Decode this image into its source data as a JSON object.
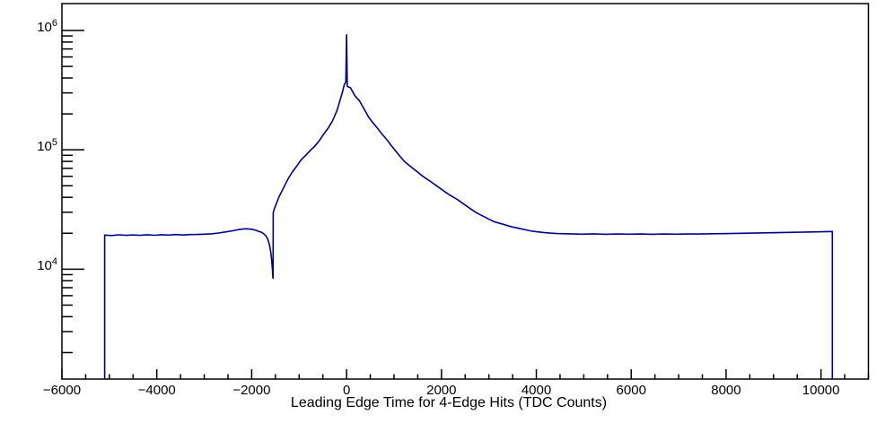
{
  "colors": {
    "background": "#ffffff",
    "frame": "#000000",
    "histogram_line": "#00008b"
  },
  "chart_data": {
    "type": "line",
    "title": "",
    "xlabel": "Leading Edge Time for 4-Edge Hits (TDC Counts)",
    "ylabel": "",
    "grid": false,
    "legend": "none",
    "x_axis": {
      "min": -6000,
      "max": 11000,
      "major_step": 2000,
      "minor_step": 500,
      "ticks": [
        {
          "value": -6000,
          "label": "−6000"
        },
        {
          "value": -4000,
          "label": "−4000"
        },
        {
          "value": -2000,
          "label": "−2000"
        },
        {
          "value": 0,
          "label": "0"
        },
        {
          "value": 2000,
          "label": "2000"
        },
        {
          "value": 4000,
          "label": "4000"
        },
        {
          "value": 6000,
          "label": "6000"
        },
        {
          "value": 8000,
          "label": "8000"
        },
        {
          "value": 10000,
          "label": "10000"
        }
      ]
    },
    "y_axis": {
      "scale": "log",
      "min": 1200,
      "max": 1680000,
      "decades": [
        {
          "value": 10000,
          "mantissa": "10",
          "exponent": "4"
        },
        {
          "value": 100000,
          "mantissa": "10",
          "exponent": "5"
        },
        {
          "value": 1000000,
          "mantissa": "10",
          "exponent": "6"
        }
      ]
    },
    "series": [
      {
        "color": "#00008b",
        "points": [
          [
            -5100,
            1200
          ],
          [
            -5100,
            19300
          ],
          [
            -4950,
            19150
          ],
          [
            -4800,
            19400
          ],
          [
            -4650,
            19200
          ],
          [
            -4500,
            19350
          ],
          [
            -4350,
            19200
          ],
          [
            -4200,
            19450
          ],
          [
            -4050,
            19250
          ],
          [
            -3900,
            19450
          ],
          [
            -3750,
            19300
          ],
          [
            -3600,
            19500
          ],
          [
            -3450,
            19350
          ],
          [
            -3300,
            19500
          ],
          [
            -3150,
            19550
          ],
          [
            -3000,
            19650
          ],
          [
            -2850,
            19800
          ],
          [
            -2700,
            20100
          ],
          [
            -2550,
            20500
          ],
          [
            -2400,
            21000
          ],
          [
            -2300,
            21400
          ],
          [
            -2200,
            21700
          ],
          [
            -2100,
            21800
          ],
          [
            -2000,
            21600
          ],
          [
            -1930,
            21300
          ],
          [
            -1860,
            20800
          ],
          [
            -1800,
            20400
          ],
          [
            -1760,
            20000
          ],
          [
            -1700,
            19000
          ],
          [
            -1660,
            17800
          ],
          [
            -1625,
            16000
          ],
          [
            -1600,
            14000
          ],
          [
            -1580,
            12000
          ],
          [
            -1565,
            10200
          ],
          [
            -1555,
            8800
          ],
          [
            -1550,
            8300
          ],
          [
            -1546,
            29800
          ],
          [
            -1524,
            32000
          ],
          [
            -1429,
            40000
          ],
          [
            -1335,
            47500
          ],
          [
            -1240,
            56500
          ],
          [
            -1146,
            65000
          ],
          [
            -1051,
            73000
          ],
          [
            -957,
            82500
          ],
          [
            -862,
            90000
          ],
          [
            -768,
            98500
          ],
          [
            -673,
            107000
          ],
          [
            -578,
            119000
          ],
          [
            -484,
            135000
          ],
          [
            -389,
            152000
          ],
          [
            -295,
            175000
          ],
          [
            -200,
            214000
          ],
          [
            -144,
            255000
          ],
          [
            -87,
            304000
          ],
          [
            -49,
            350000
          ],
          [
            -15,
            372000
          ],
          [
            0,
            930000
          ],
          [
            15,
            340000
          ],
          [
            83,
            331000
          ],
          [
            178,
            283000
          ],
          [
            270,
            258000
          ],
          [
            370,
            220000
          ],
          [
            461,
            189000
          ],
          [
            557,
            168000
          ],
          [
            650,
            152000
          ],
          [
            744,
            136000
          ],
          [
            839,
            123000
          ],
          [
            933,
            110000
          ],
          [
            1028,
            98500
          ],
          [
            1123,
            88500
          ],
          [
            1218,
            80000
          ],
          [
            1312,
            74500
          ],
          [
            1407,
            69500
          ],
          [
            1501,
            65000
          ],
          [
            1596,
            60500
          ],
          [
            1690,
            57000
          ],
          [
            1785,
            53700
          ],
          [
            1880,
            50500
          ],
          [
            1974,
            47500
          ],
          [
            2068,
            44700
          ],
          [
            2163,
            42100
          ],
          [
            2257,
            40000
          ],
          [
            2352,
            38000
          ],
          [
            2446,
            35700
          ],
          [
            2541,
            33600
          ],
          [
            2635,
            31600
          ],
          [
            2730,
            29800
          ],
          [
            2824,
            28500
          ],
          [
            2919,
            27300
          ],
          [
            3013,
            26100
          ],
          [
            3108,
            25000
          ],
          [
            3202,
            24400
          ],
          [
            3297,
            23800
          ],
          [
            3391,
            23200
          ],
          [
            3486,
            22600
          ],
          [
            3580,
            22200
          ],
          [
            3675,
            21800
          ],
          [
            3769,
            21400
          ],
          [
            3864,
            21000
          ],
          [
            4005,
            20600
          ],
          [
            4147,
            20300
          ],
          [
            4289,
            20050
          ],
          [
            4431,
            19900
          ],
          [
            4700,
            19800
          ],
          [
            4950,
            19650
          ],
          [
            5200,
            19780
          ],
          [
            5450,
            19620
          ],
          [
            5700,
            19720
          ],
          [
            5950,
            19640
          ],
          [
            6200,
            19700
          ],
          [
            6450,
            19620
          ],
          [
            6700,
            19700
          ],
          [
            6950,
            19660
          ],
          [
            7200,
            19740
          ],
          [
            7450,
            19700
          ],
          [
            7700,
            19820
          ],
          [
            7950,
            19870
          ],
          [
            8200,
            19960
          ],
          [
            8450,
            20030
          ],
          [
            8700,
            20140
          ],
          [
            8950,
            20200
          ],
          [
            9200,
            20300
          ],
          [
            9450,
            20380
          ],
          [
            9700,
            20480
          ],
          [
            9950,
            20560
          ],
          [
            10150,
            20650
          ],
          [
            10240,
            20700
          ],
          [
            10240,
            1200
          ]
        ]
      }
    ]
  }
}
